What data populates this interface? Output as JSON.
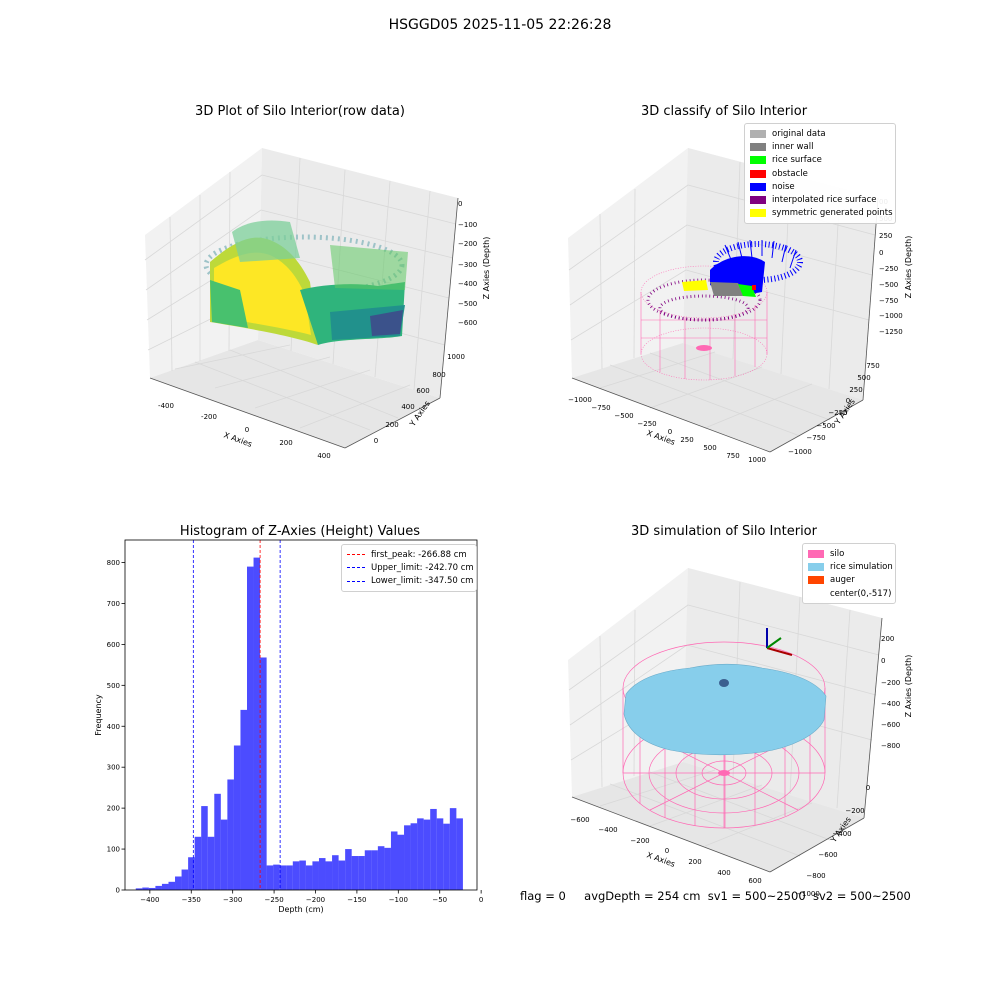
{
  "suptitle": "HSGGD05 2025-11-05 22:26:28",
  "footer": {
    "flag": "flag = 0",
    "avg": "avgDepth = 254 cm",
    "sv1": "sv1 = 500~2500",
    "sv2": "sv2 = 500~2500"
  },
  "chart_data": [
    {
      "type": "scatter",
      "title": "3D Plot of Silo Interior(row data)",
      "xlabel": "X Axies",
      "ylabel": "Y Axies",
      "zlabel": "Z Axies (Depth)",
      "x_ticks": [
        "-400",
        "-200",
        "0",
        "200",
        "400"
      ],
      "y_ticks": [
        "0",
        "200",
        "400",
        "600",
        "800",
        "1000"
      ],
      "z_ticks": [
        "0",
        "−100",
        "−200",
        "−300",
        "−400",
        "−500",
        "−600"
      ],
      "colormap": [
        "#440154",
        "#3b528b",
        "#21918c",
        "#5ec962",
        "#fde725"
      ]
    },
    {
      "type": "scatter",
      "title": "3D classify of Silo Interior",
      "xlabel": "X Axies",
      "ylabel": "Y Axies",
      "zlabel": "Z Axies (Depth)",
      "x_ticks": [
        "−1000",
        "−750",
        "−500",
        "−250",
        "0",
        "250",
        "500",
        "750",
        "1000"
      ],
      "y_ticks": [
        "−1000",
        "−750",
        "−500",
        "−250",
        "0",
        "250",
        "500",
        "750"
      ],
      "z_ticks": [
        "500",
        "250",
        "0",
        "−250",
        "−500",
        "−750",
        "−1000",
        "−1250"
      ],
      "z_tick_partial": "00",
      "legend": [
        {
          "label": "original data",
          "color": "#b0b0b0"
        },
        {
          "label": "inner wall",
          "color": "#808080"
        },
        {
          "label": "rice surface",
          "color": "#00ff00"
        },
        {
          "label": "obstacle",
          "color": "#ff0000"
        },
        {
          "label": "noise",
          "color": "#0000ff"
        },
        {
          "label": "interpolated rice surface",
          "color": "#800080"
        },
        {
          "label": "symmetric generated points",
          "color": "#ffff00"
        }
      ]
    },
    {
      "type": "bar",
      "title": "Histogram of Z-Axies (Height) Values",
      "xlabel": "Depth (cm)",
      "ylabel": "Frequency",
      "xlim": [
        -430,
        -5
      ],
      "ylim": [
        0,
        855
      ],
      "x_ticks": [
        -400,
        -350,
        -300,
        -250,
        -200,
        -150,
        -100,
        -50,
        0
      ],
      "y_ticks": [
        0,
        100,
        200,
        300,
        400,
        500,
        600,
        700,
        800
      ],
      "bar_color": "#0000ff",
      "bin_width": 7.9,
      "bin_start": -417,
      "values": [
        4,
        6,
        5,
        10,
        15,
        20,
        33,
        50,
        80,
        130,
        205,
        130,
        235,
        172,
        270,
        353,
        440,
        790,
        812,
        568,
        60,
        62,
        60,
        60,
        70,
        72,
        60,
        70,
        78,
        70,
        85,
        72,
        100,
        83,
        83,
        97,
        97,
        107,
        103,
        143,
        135,
        158,
        163,
        175,
        172,
        198,
        175,
        162,
        200,
        175
      ],
      "vlines": [
        {
          "x": -266.88,
          "color": "#ff0000",
          "label": "first_peak: -266.88 cm"
        },
        {
          "x": -242.7,
          "color": "#0000ff",
          "label": "Upper_limit: -242.70 cm"
        },
        {
          "x": -347.5,
          "color": "#0000ff",
          "label": "Lower_limit: -347.50 cm"
        }
      ],
      "legend_position": "top-right"
    },
    {
      "type": "scatter",
      "title": "3D simulation of Silo Interior",
      "xlabel": "X Axies",
      "ylabel": "Y Axies",
      "zlabel": "Z Axies (Depth)",
      "x_ticks": [
        "−600",
        "−400",
        "−200",
        "0",
        "200",
        "400",
        "600"
      ],
      "y_ticks": [
        "0",
        "−200",
        "−400",
        "−600",
        "−800",
        "−1000"
      ],
      "z_ticks": [
        "200",
        "0",
        "−200",
        "−400",
        "−600",
        "−800"
      ],
      "legend": [
        {
          "label": "silo",
          "color": "#ff69b4"
        },
        {
          "label": "rice simulation",
          "color": "#87ceeb"
        },
        {
          "label": "auger",
          "color": "#ff4500"
        },
        {
          "label": "center(0,-517)",
          "color": ""
        }
      ]
    }
  ]
}
